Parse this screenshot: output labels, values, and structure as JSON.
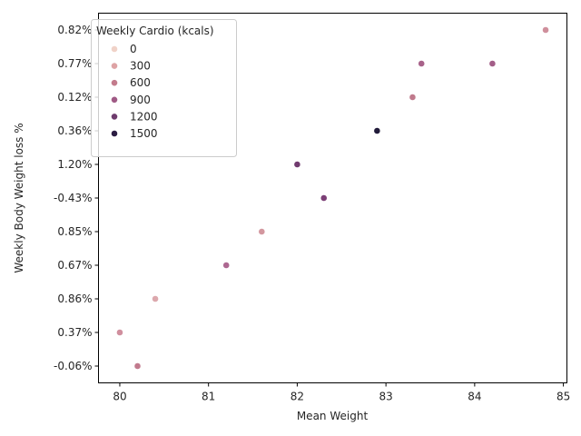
{
  "chart_data": {
    "type": "scatter",
    "xlabel": "Mean Weight",
    "ylabel": "Weekly Body Weight loss %",
    "xlim": [
      79.76,
      85.04
    ],
    "x_ticks": [
      80,
      81,
      82,
      83,
      84,
      85
    ],
    "y_categories": [
      "-0.06%",
      "0.37%",
      "0.86%",
      "0.67%",
      "0.85%",
      "-0.43%",
      "1.20%",
      "0.36%",
      "0.12%",
      "0.77%",
      "0.82%"
    ],
    "legend": {
      "title": "Weekly Cardio (kcals)",
      "placement": "top-left",
      "entries": [
        {
          "label": "0",
          "color": "#f0d2c8"
        },
        {
          "label": "300",
          "color": "#dea3a5"
        },
        {
          "label": "600",
          "color": "#c37b8c"
        },
        {
          "label": "900",
          "color": "#a05a85"
        },
        {
          "label": "1200",
          "color": "#6e3b6d"
        },
        {
          "label": "1500",
          "color": "#2c1d43"
        }
      ]
    },
    "points": [
      {
        "x": 80.2,
        "y": "-0.06%",
        "cardio": 700,
        "color": "#c17a8d"
      },
      {
        "x": 80.0,
        "y": "0.37%",
        "cardio": 500,
        "color": "#d08f9e"
      },
      {
        "x": 80.4,
        "y": "0.86%",
        "cardio": 350,
        "color": "#dca8ad"
      },
      {
        "x": 81.2,
        "y": "0.67%",
        "cardio": 850,
        "color": "#ad6891"
      },
      {
        "x": 81.6,
        "y": "0.85%",
        "cardio": 450,
        "color": "#d3979f"
      },
      {
        "x": 82.3,
        "y": "-0.43%",
        "cardio": 1100,
        "color": "#7c3f76"
      },
      {
        "x": 82.0,
        "y": "1.20%",
        "cardio": 1150,
        "color": "#713b6f"
      },
      {
        "x": 82.9,
        "y": "0.36%",
        "cardio": 1650,
        "color": "#211b3a"
      },
      {
        "x": 83.3,
        "y": "0.12%",
        "cardio": 650,
        "color": "#c07a8c"
      },
      {
        "x": 83.4,
        "y": "0.77%",
        "cardio": 850,
        "color": "#a8628a"
      },
      {
        "x": 84.2,
        "y": "0.77%",
        "cardio": 900,
        "color": "#a35e88"
      },
      {
        "x": 84.8,
        "y": "0.82%",
        "cardio": 500,
        "color": "#cf8f9c"
      }
    ]
  }
}
